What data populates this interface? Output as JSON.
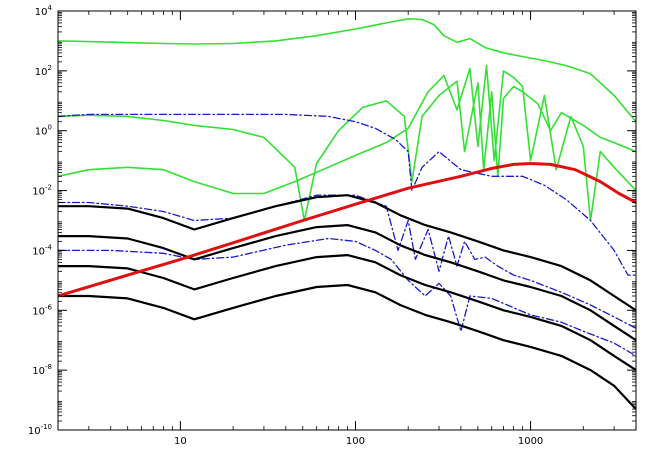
{
  "chart_data": {
    "type": "line",
    "title": "",
    "xlabel": "",
    "ylabel": "",
    "x_scale": "log",
    "y_scale": "log",
    "xlim": [
      2,
      4000
    ],
    "ylim": [
      1e-10,
      10000.0
    ],
    "grid": false,
    "legend": "none",
    "x_ticks": [
      {
        "value": 10,
        "label": "10"
      },
      {
        "value": 100,
        "label": "100"
      },
      {
        "value": 1000,
        "label": "1000"
      }
    ],
    "y_ticks": [
      {
        "value": 10000.0,
        "base": "10",
        "exp": "4"
      },
      {
        "value": 100.0,
        "base": "10",
        "exp": "2"
      },
      {
        "value": 1.0,
        "base": "10",
        "exp": "0"
      },
      {
        "value": 0.01,
        "base": "10",
        "exp": "-2"
      },
      {
        "value": 0.0001,
        "base": "10",
        "exp": "-4"
      },
      {
        "value": 1e-06,
        "base": "10",
        "exp": "-6"
      },
      {
        "value": 1e-08,
        "base": "10",
        "exp": "-8"
      },
      {
        "value": 1e-10,
        "base": "10",
        "exp": "-10"
      }
    ],
    "series": [
      {
        "color": "#33e033",
        "style": "solid",
        "width": 1.6,
        "x": [
          2,
          3,
          5,
          8,
          12,
          20,
          35,
          60,
          100,
          150,
          200,
          240,
          280,
          320,
          380,
          450,
          550,
          700,
          900,
          1200,
          1600,
          2200,
          3000,
          4000
        ],
        "y": [
          1000,
          950,
          880,
          820,
          790,
          820,
          1000,
          1500,
          2500,
          4000,
          5500,
          5200,
          3500,
          1500,
          900,
          1200,
          600,
          400,
          300,
          220,
          150,
          80,
          15,
          2
        ]
      },
      {
        "color": "#33e033",
        "style": "solid",
        "width": 1.6,
        "x": [
          2,
          3,
          5,
          8,
          12,
          20,
          30,
          45,
          51,
          60,
          80,
          110,
          150,
          190,
          210,
          240,
          300,
          380,
          420,
          500,
          540,
          600,
          650,
          700,
          800,
          900,
          1100,
          1300,
          1500,
          2000,
          2500,
          3000,
          4000
        ],
        "y": [
          3,
          3.3,
          3,
          2.2,
          1.5,
          1.1,
          0.6,
          0.06,
          0.001,
          0.08,
          1,
          6,
          10,
          3,
          0.02,
          3,
          15,
          45,
          0.2,
          40,
          0.05,
          20,
          0.03,
          12,
          30,
          20,
          8,
          1,
          4,
          1.5,
          0.6,
          0.4,
          0.2
        ]
      },
      {
        "color": "#33e033",
        "style": "solid",
        "width": 1.6,
        "x": [
          2,
          3,
          5,
          8,
          12,
          20,
          30,
          45,
          65,
          100,
          150,
          200,
          260,
          320,
          380,
          450,
          500,
          560,
          620,
          700,
          800,
          900,
          1000,
          1200,
          1400,
          1700,
          2000,
          2200,
          2500,
          3000,
          4000
        ],
        "y": [
          0.03,
          0.05,
          0.06,
          0.05,
          0.02,
          0.008,
          0.008,
          0.02,
          0.05,
          0.15,
          0.4,
          1.2,
          20,
          70,
          5,
          120,
          0.3,
          150,
          0.1,
          100,
          60,
          30,
          0.1,
          15,
          0.05,
          3,
          0.3,
          0.001,
          0.2,
          0.06,
          0.01
        ]
      },
      {
        "color": "#1a1acc",
        "style": "dashdot",
        "width": 1.3,
        "x": [
          2,
          3,
          5,
          8,
          12,
          20,
          40,
          70,
          100,
          130,
          170,
          200,
          210,
          240,
          300,
          400,
          600,
          900,
          1200,
          1600,
          2200,
          3000,
          3600,
          4000
        ],
        "y": [
          3,
          3.5,
          3.5,
          3.5,
          3.5,
          3.5,
          3.5,
          3,
          2,
          1.2,
          0.5,
          0.2,
          0.01,
          0.06,
          0.2,
          0.05,
          0.03,
          0.03,
          0.015,
          0.005,
          0.001,
          0.0001,
          1.5e-05,
          1.5e-05
        ]
      },
      {
        "color": "#1a1acc",
        "style": "dashdot",
        "width": 1.3,
        "x": [
          2,
          3,
          5,
          8,
          12,
          20,
          35,
          60,
          100,
          150,
          175,
          200,
          220,
          260,
          300,
          340,
          380,
          420,
          480,
          550,
          650,
          800,
          1000,
          1500,
          2200,
          3000,
          4000
        ],
        "y": [
          0.004,
          0.004,
          0.003,
          0.002,
          0.001,
          0.0012,
          0.003,
          0.007,
          0.007,
          0.003,
          0.0001,
          0.001,
          5e-05,
          0.0005,
          2e-05,
          0.0003,
          3e-05,
          0.0002,
          5e-05,
          6e-05,
          3e-05,
          1.5e-05,
          1e-05,
          4e-06,
          1.5e-06,
          6e-07,
          2.5e-07
        ]
      },
      {
        "color": "#1a1acc",
        "style": "dashdot",
        "width": 1.3,
        "x": [
          2,
          4,
          8,
          12,
          20,
          40,
          70,
          100,
          130,
          160,
          200,
          250,
          300,
          350,
          400,
          450,
          600,
          1000,
          1500,
          2000,
          3000,
          4000
        ],
        "y": [
          0.0001,
          0.0001,
          8e-05,
          5e-05,
          6e-05,
          0.00015,
          0.00025,
          0.0002,
          0.0001,
          5e-05,
          1e-05,
          3e-06,
          8e-06,
          3e-06,
          2e-07,
          3e-06,
          2.5e-06,
          7e-07,
          4e-07,
          2e-07,
          8e-08,
          3e-08
        ]
      },
      {
        "color": "#000000",
        "style": "solid",
        "width": 2.2,
        "x": [
          2,
          3,
          5,
          8,
          12,
          20,
          35,
          60,
          90,
          130,
          180,
          250,
          350,
          500,
          700,
          1000,
          1500,
          2200,
          3000,
          4000
        ],
        "y": [
          0.003,
          0.003,
          0.0025,
          0.0012,
          0.0005,
          0.0012,
          0.003,
          0.006,
          0.007,
          0.004,
          0.0015,
          0.0007,
          0.0004,
          0.0002,
          0.0001,
          6e-05,
          3e-05,
          1e-05,
          3e-06,
          1e-06
        ]
      },
      {
        "color": "#000000",
        "style": "solid",
        "width": 2.2,
        "x": [
          2,
          3,
          5,
          8,
          12,
          20,
          35,
          60,
          90,
          130,
          180,
          250,
          350,
          500,
          700,
          1000,
          1500,
          2200,
          3000,
          4000
        ],
        "y": [
          0.0003,
          0.0003,
          0.00025,
          0.00012,
          5e-05,
          0.00012,
          0.0003,
          0.0006,
          0.0007,
          0.0004,
          0.00015,
          7e-05,
          4e-05,
          2e-05,
          1e-05,
          6e-06,
          3e-06,
          1e-06,
          3e-07,
          1e-07
        ]
      },
      {
        "color": "#000000",
        "style": "solid",
        "width": 2.2,
        "x": [
          2,
          3,
          5,
          8,
          12,
          20,
          35,
          60,
          90,
          130,
          180,
          250,
          350,
          500,
          700,
          1000,
          1500,
          2200,
          3000,
          4000
        ],
        "y": [
          3e-05,
          3e-05,
          2.5e-05,
          1.2e-05,
          5e-06,
          1.2e-05,
          3e-05,
          6e-05,
          7e-05,
          4e-05,
          1.5e-05,
          7e-06,
          4e-06,
          2e-06,
          1e-06,
          6e-07,
          3e-07,
          1e-07,
          3e-08,
          1e-08
        ]
      },
      {
        "color": "#000000",
        "style": "solid",
        "width": 2.2,
        "x": [
          2,
          3,
          5,
          8,
          12,
          20,
          35,
          60,
          90,
          130,
          180,
          250,
          350,
          500,
          700,
          1000,
          1500,
          2200,
          3000,
          4000
        ],
        "y": [
          3e-06,
          3e-06,
          2.5e-06,
          1.2e-06,
          5e-07,
          1.2e-06,
          3e-06,
          6e-06,
          7e-06,
          4e-06,
          1.5e-06,
          7e-07,
          4e-07,
          2e-07,
          1e-07,
          6e-08,
          3e-08,
          1e-08,
          3e-09,
          5e-10
        ]
      },
      {
        "color": "#e01010",
        "style": "solid",
        "width": 3,
        "x": [
          2,
          5,
          10,
          20,
          50,
          100,
          200,
          400,
          600,
          800,
          1000,
          1300,
          1800,
          2500,
          3200,
          4000
        ],
        "y": [
          3e-06,
          1.5e-05,
          5e-05,
          0.00018,
          0.001,
          0.0035,
          0.012,
          0.03,
          0.055,
          0.075,
          0.08,
          0.075,
          0.05,
          0.02,
          0.008,
          0.004
        ]
      }
    ]
  }
}
